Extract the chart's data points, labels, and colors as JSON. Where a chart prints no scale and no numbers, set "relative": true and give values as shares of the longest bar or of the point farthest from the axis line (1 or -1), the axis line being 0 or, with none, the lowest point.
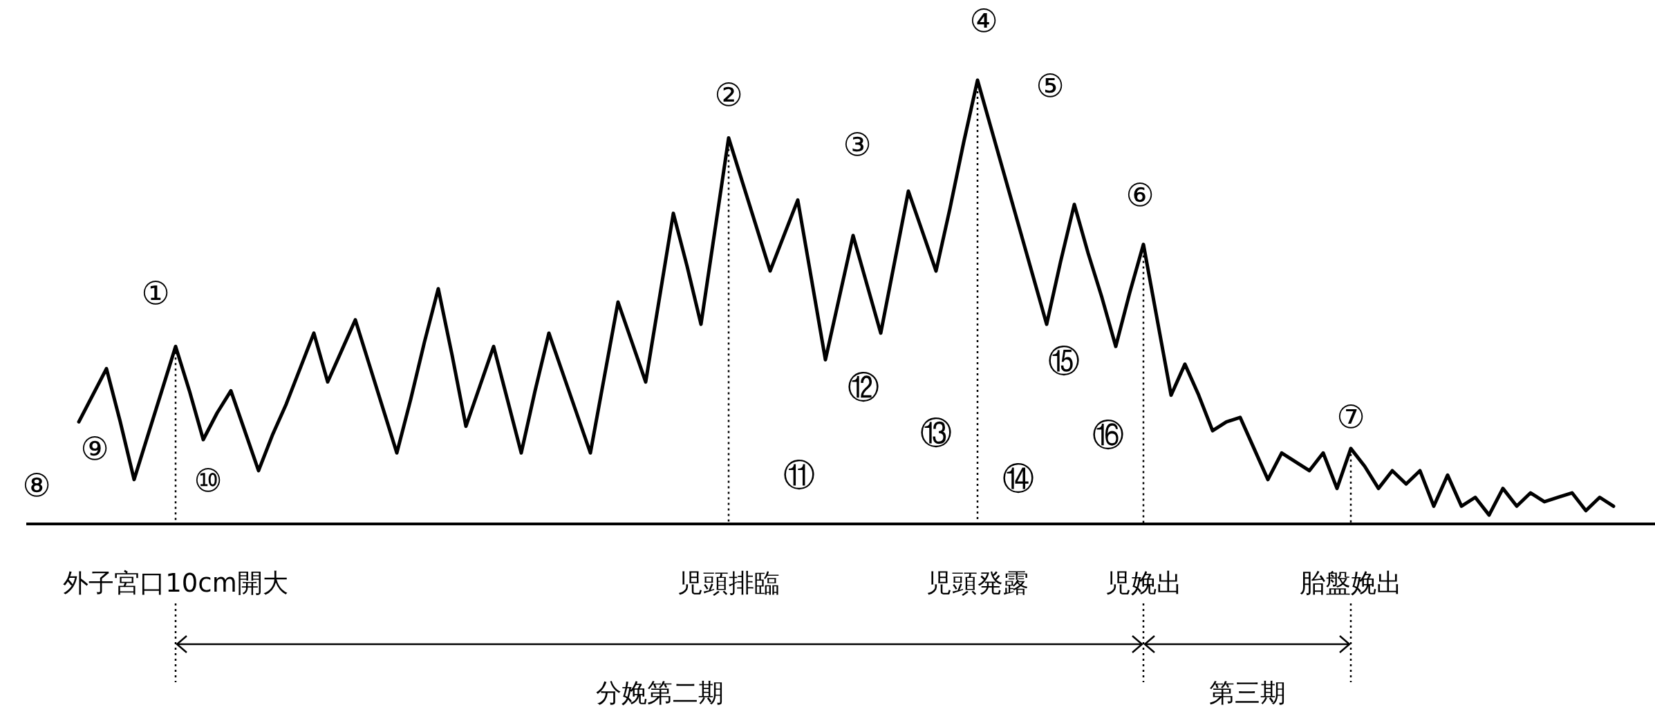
{
  "chart_data": {
    "type": "line",
    "relative": true,
    "categories": [
      null,
      null,
      null,
      null,
      null,
      null,
      null,
      "外子宮口10cm開大",
      null,
      null,
      null,
      null,
      null,
      null,
      null,
      null,
      null,
      null,
      null,
      null,
      null,
      null,
      null,
      null,
      null,
      null,
      null,
      null,
      null,
      null,
      null,
      null,
      null,
      null,
      null,
      null,
      null,
      null,
      null,
      null,
      null,
      null,
      null,
      null,
      null,
      null,
      null,
      "児頭排臨",
      null,
      null,
      null,
      null,
      null,
      null,
      null,
      null,
      null,
      null,
      null,
      null,
      null,
      null,
      null,
      null,
      null,
      "児頭発露",
      null,
      null,
      null,
      null,
      null,
      null,
      null,
      null,
      null,
      null,
      null,
      "児娩出",
      null,
      null,
      null,
      null,
      null,
      null,
      null,
      null,
      null,
      null,
      null,
      null,
      null,
      null,
      "胎盤娩出",
      null,
      null,
      null,
      null,
      null,
      null,
      null,
      null,
      null,
      null,
      null,
      null,
      null,
      null,
      null,
      null,
      null,
      null,
      null
    ],
    "series": [
      {
        "color": "#000000",
        "values": [
          0.23,
          0.29,
          0.35,
          0.23,
          0.1,
          0.2,
          0.3,
          0.4,
          0.3,
          0.19,
          0.25,
          0.3,
          0.21,
          0.12,
          0.2,
          0.27,
          0.35,
          0.43,
          0.32,
          0.39,
          0.46,
          0.36,
          0.26,
          0.16,
          0.28,
          0.41,
          0.53,
          0.38,
          0.22,
          0.31,
          0.4,
          0.28,
          0.16,
          0.3,
          0.43,
          0.34,
          0.25,
          0.16,
          0.33,
          0.5,
          0.41,
          0.32,
          0.51,
          0.7,
          0.58,
          0.45,
          0.66,
          0.87,
          0.77,
          0.67,
          0.57,
          0.65,
          0.73,
          0.55,
          0.37,
          0.51,
          0.65,
          0.54,
          0.43,
          0.59,
          0.75,
          0.66,
          0.57,
          0.71,
          0.86,
          1.0,
          0.89,
          0.78,
          0.67,
          0.56,
          0.45,
          0.59,
          0.72,
          0.61,
          0.51,
          0.4,
          0.52,
          0.63,
          0.46,
          0.29,
          0.36,
          0.29,
          0.21,
          0.23,
          0.24,
          0.17,
          0.1,
          0.16,
          0.14,
          0.12,
          0.16,
          0.08,
          0.17,
          0.13,
          0.08,
          0.12,
          0.09,
          0.12,
          0.04,
          0.11,
          0.04,
          0.06,
          0.02,
          0.08,
          0.04,
          0.07,
          0.05,
          0.06,
          0.07,
          0.03,
          0.06,
          0.04
        ]
      }
    ],
    "ref_lines": [
      {
        "axis": "x",
        "value": "外子宮口10cm開大",
        "line_style": "dotted"
      },
      {
        "axis": "x",
        "value": "児頭排臨",
        "line_style": "dotted"
      },
      {
        "axis": "x",
        "value": "児頭発露",
        "line_style": "dotted"
      },
      {
        "axis": "x",
        "value": "児娩出",
        "line_style": "dotted"
      },
      {
        "axis": "x",
        "value": "胎盤娩出",
        "line_style": "dotted"
      }
    ],
    "annotations": [
      "①",
      "②",
      "③",
      "④",
      "⑤",
      "⑥",
      "⑦",
      "⑧",
      "⑨",
      "⑩",
      "⑪",
      "⑫",
      "⑬",
      "⑭",
      "⑮",
      "⑯",
      "分娩第二期",
      "第三期"
    ]
  }
}
